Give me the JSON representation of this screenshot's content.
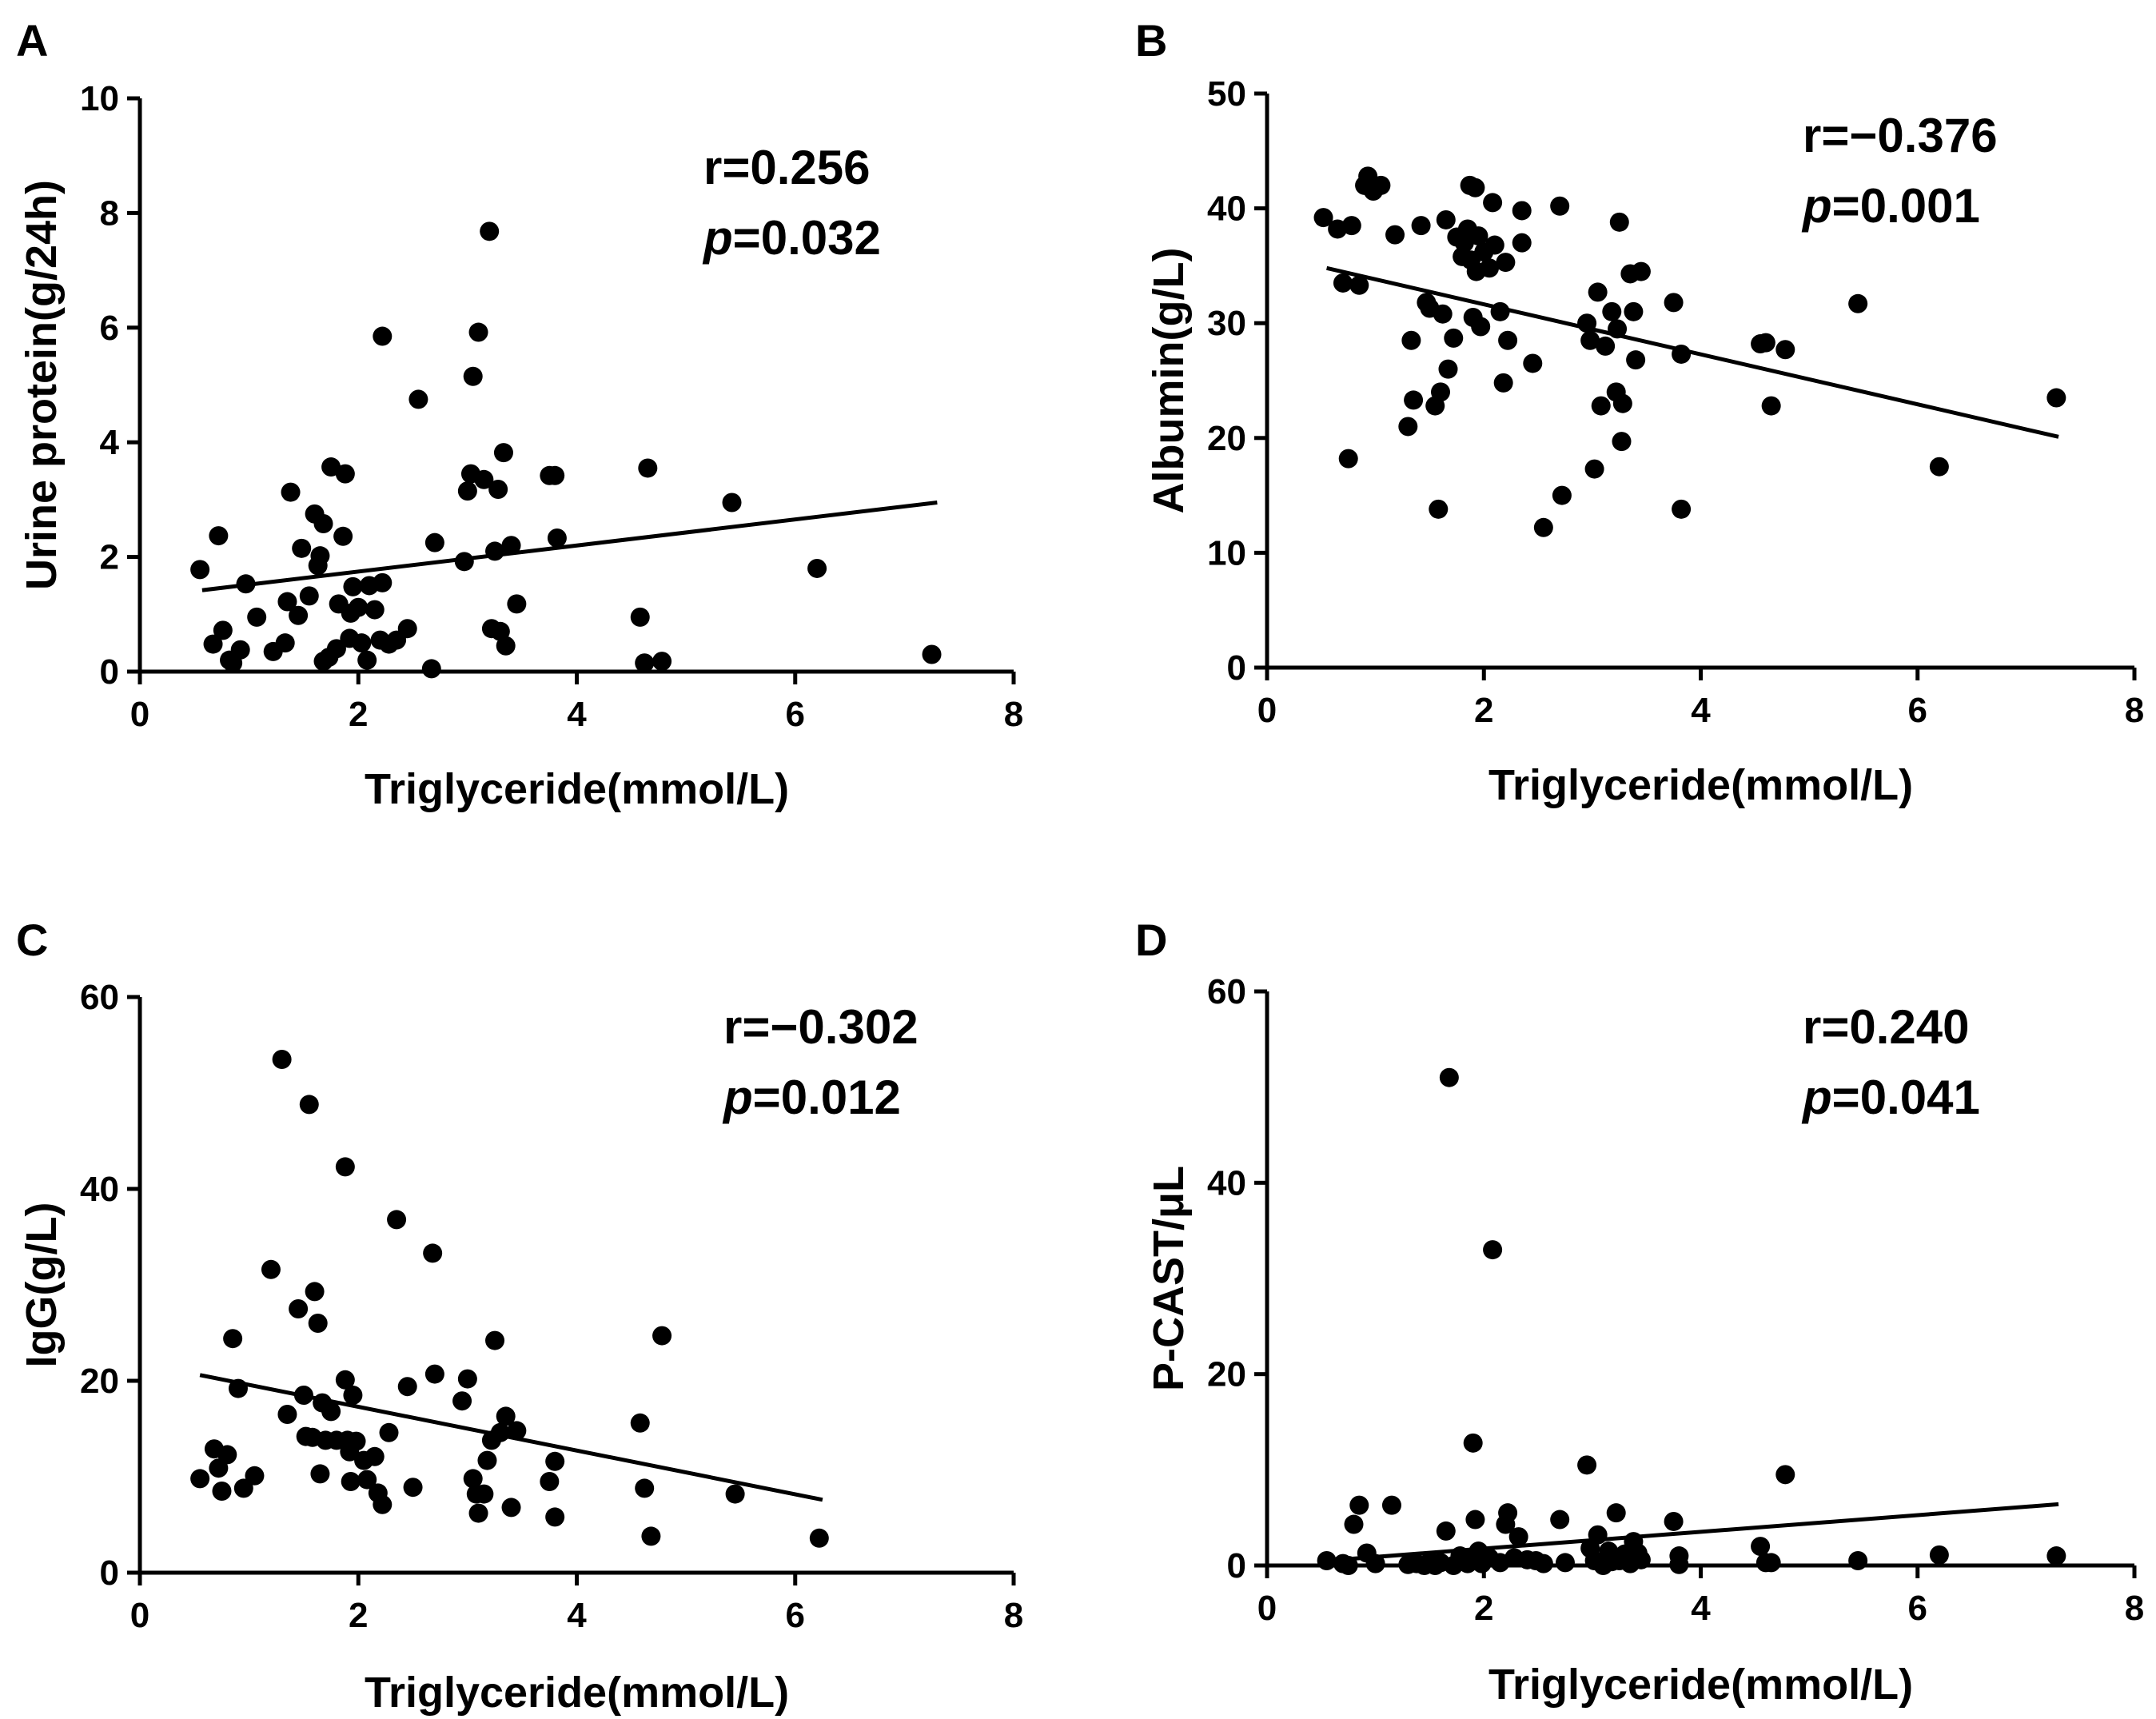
{
  "chart_data": [
    {
      "type": "scatter",
      "panel": "A",
      "xlabel": "Triglyceride(mmol/L)",
      "ylabel": "Urine protein(g/24h)",
      "xlim": [
        0,
        8
      ],
      "ylim": [
        0,
        10
      ],
      "xticks": [
        "0",
        "2",
        "4",
        "6",
        "8"
      ],
      "yticks": [
        "0",
        "2",
        "4",
        "6",
        "8",
        "10"
      ],
      "stat_r": "r=0.256",
      "stat_p_symbol": "p",
      "stat_p_value": "=0.032",
      "fit": [
        [
          0.57,
          1.42
        ],
        [
          7.3,
          2.95
        ]
      ],
      "points": [
        [
          0.55,
          1.78
        ],
        [
          0.67,
          0.48
        ],
        [
          0.72,
          2.37
        ],
        [
          0.76,
          0.72
        ],
        [
          0.82,
          0.2
        ],
        [
          0.85,
          0.15
        ],
        [
          0.92,
          0.38
        ],
        [
          0.97,
          1.53
        ],
        [
          1.07,
          0.95
        ],
        [
          1.22,
          0.35
        ],
        [
          1.33,
          0.5
        ],
        [
          1.35,
          1.22
        ],
        [
          1.38,
          3.13
        ],
        [
          1.45,
          0.98
        ],
        [
          1.48,
          2.15
        ],
        [
          1.55,
          1.32
        ],
        [
          1.6,
          2.75
        ],
        [
          1.63,
          1.85
        ],
        [
          1.65,
          2.02
        ],
        [
          1.68,
          2.58
        ],
        [
          1.68,
          0.18
        ],
        [
          1.73,
          0.25
        ],
        [
          1.75,
          3.57
        ],
        [
          1.8,
          0.4
        ],
        [
          1.82,
          1.18
        ],
        [
          1.86,
          2.36
        ],
        [
          1.88,
          3.45
        ],
        [
          1.92,
          0.58
        ],
        [
          1.93,
          1.02
        ],
        [
          1.95,
          1.48
        ],
        [
          2.0,
          1.12
        ],
        [
          2.03,
          0.5
        ],
        [
          2.08,
          0.2
        ],
        [
          2.1,
          1.5
        ],
        [
          2.15,
          1.08
        ],
        [
          2.2,
          0.55
        ],
        [
          2.22,
          5.85
        ],
        [
          2.22,
          1.55
        ],
        [
          2.28,
          0.48
        ],
        [
          2.35,
          0.55
        ],
        [
          2.45,
          0.75
        ],
        [
          2.55,
          4.75
        ],
        [
          2.67,
          0.05
        ],
        [
          2.7,
          2.25
        ],
        [
          2.97,
          1.92
        ],
        [
          3.0,
          3.15
        ],
        [
          3.03,
          3.45
        ],
        [
          3.05,
          5.15
        ],
        [
          3.1,
          5.92
        ],
        [
          3.15,
          3.35
        ],
        [
          3.2,
          7.68
        ],
        [
          3.22,
          0.75
        ],
        [
          3.25,
          2.1
        ],
        [
          3.28,
          3.18
        ],
        [
          3.3,
          0.7
        ],
        [
          3.33,
          3.82
        ],
        [
          3.35,
          0.45
        ],
        [
          3.4,
          2.2
        ],
        [
          3.45,
          1.18
        ],
        [
          3.75,
          3.42
        ],
        [
          3.8,
          3.42
        ],
        [
          3.82,
          2.33
        ],
        [
          4.58,
          0.95
        ],
        [
          4.62,
          0.15
        ],
        [
          4.65,
          3.55
        ],
        [
          4.78,
          0.18
        ],
        [
          5.42,
          2.95
        ],
        [
          6.2,
          1.8
        ],
        [
          7.25,
          0.3
        ]
      ]
    },
    {
      "type": "scatter",
      "panel": "B",
      "xlabel": "Triglyceride(mmol/L)",
      "ylabel": "Albumin(g/L)",
      "xlim": [
        0,
        8
      ],
      "ylim": [
        0,
        50
      ],
      "xticks": [
        "0",
        "2",
        "4",
        "6",
        "8"
      ],
      "yticks": [
        "0",
        "10",
        "20",
        "30",
        "40",
        "50"
      ],
      "stat_r": "r=−0.376",
      "stat_p_symbol": "p",
      "stat_p_value": "=0.001",
      "fit": [
        [
          0.55,
          34.8
        ],
        [
          7.3,
          20.1
        ]
      ],
      "points": [
        [
          0.52,
          39.2
        ],
        [
          0.65,
          38.2
        ],
        [
          0.7,
          33.5
        ],
        [
          0.75,
          18.2
        ],
        [
          0.78,
          38.5
        ],
        [
          0.85,
          33.3
        ],
        [
          0.9,
          42.0
        ],
        [
          0.93,
          42.8
        ],
        [
          0.98,
          41.5
        ],
        [
          1.05,
          42.0
        ],
        [
          1.18,
          37.7
        ],
        [
          1.3,
          21.0
        ],
        [
          1.33,
          28.5
        ],
        [
          1.35,
          23.3
        ],
        [
          1.42,
          38.5
        ],
        [
          1.47,
          31.8
        ],
        [
          1.5,
          31.3
        ],
        [
          1.55,
          22.8
        ],
        [
          1.58,
          13.8
        ],
        [
          1.6,
          24.0
        ],
        [
          1.62,
          30.8
        ],
        [
          1.65,
          39.0
        ],
        [
          1.67,
          26.0
        ],
        [
          1.72,
          28.7
        ],
        [
          1.75,
          37.5
        ],
        [
          1.8,
          35.8
        ],
        [
          1.82,
          37.0
        ],
        [
          1.85,
          38.2
        ],
        [
          1.87,
          42.0
        ],
        [
          1.88,
          35.5
        ],
        [
          1.9,
          30.5
        ],
        [
          1.92,
          41.8
        ],
        [
          1.93,
          34.5
        ],
        [
          1.95,
          37.6
        ],
        [
          1.97,
          29.7
        ],
        [
          2.0,
          36.2
        ],
        [
          2.05,
          34.8
        ],
        [
          2.08,
          40.5
        ],
        [
          2.1,
          36.8
        ],
        [
          2.15,
          31.0
        ],
        [
          2.18,
          24.8
        ],
        [
          2.2,
          35.3
        ],
        [
          2.22,
          28.5
        ],
        [
          2.35,
          39.8
        ],
        [
          2.35,
          37.0
        ],
        [
          2.45,
          26.5
        ],
        [
          2.55,
          12.2
        ],
        [
          2.7,
          40.2
        ],
        [
          2.72,
          15.0
        ],
        [
          2.95,
          30.0
        ],
        [
          2.98,
          28.5
        ],
        [
          3.02,
          17.3
        ],
        [
          3.05,
          32.7
        ],
        [
          3.08,
          22.8
        ],
        [
          3.12,
          28.0
        ],
        [
          3.18,
          31.0
        ],
        [
          3.22,
          24.0
        ],
        [
          3.23,
          29.5
        ],
        [
          3.25,
          38.8
        ],
        [
          3.27,
          19.7
        ],
        [
          3.28,
          23.0
        ],
        [
          3.35,
          34.3
        ],
        [
          3.38,
          31.0
        ],
        [
          3.4,
          26.8
        ],
        [
          3.45,
          34.5
        ],
        [
          3.75,
          31.8
        ],
        [
          3.82,
          27.3
        ],
        [
          3.82,
          13.8
        ],
        [
          4.55,
          28.2
        ],
        [
          4.6,
          28.3
        ],
        [
          4.65,
          22.8
        ],
        [
          4.78,
          27.7
        ],
        [
          5.45,
          31.7
        ],
        [
          6.2,
          17.5
        ],
        [
          7.28,
          23.5
        ]
      ]
    },
    {
      "type": "scatter",
      "panel": "C",
      "xlabel": "Triglyceride(mmol/L)",
      "ylabel": "IgG(g/L)",
      "xlim": [
        0,
        8
      ],
      "ylim": [
        0,
        60
      ],
      "xticks": [
        "0",
        "2",
        "4",
        "6",
        "8"
      ],
      "yticks": [
        "0",
        "20",
        "40",
        "60"
      ],
      "stat_r": "r=−0.302",
      "stat_p_symbol": "p",
      "stat_p_value": "=0.012",
      "fit": [
        [
          0.55,
          20.6
        ],
        [
          6.25,
          7.6
        ]
      ],
      "points": [
        [
          0.55,
          9.8
        ],
        [
          0.68,
          12.9
        ],
        [
          0.72,
          10.9
        ],
        [
          0.75,
          8.5
        ],
        [
          0.8,
          12.3
        ],
        [
          0.85,
          24.4
        ],
        [
          0.9,
          19.2
        ],
        [
          0.95,
          8.8
        ],
        [
          1.05,
          10.1
        ],
        [
          1.2,
          31.6
        ],
        [
          1.3,
          53.5
        ],
        [
          1.35,
          16.5
        ],
        [
          1.45,
          27.5
        ],
        [
          1.5,
          18.5
        ],
        [
          1.52,
          14.2
        ],
        [
          1.55,
          48.8
        ],
        [
          1.58,
          14.1
        ],
        [
          1.6,
          29.3
        ],
        [
          1.63,
          26.0
        ],
        [
          1.65,
          10.3
        ],
        [
          1.67,
          17.7
        ],
        [
          1.7,
          13.8
        ],
        [
          1.75,
          16.8
        ],
        [
          1.8,
          13.8
        ],
        [
          1.88,
          42.3
        ],
        [
          1.88,
          20.1
        ],
        [
          1.9,
          13.8
        ],
        [
          1.92,
          12.6
        ],
        [
          1.93,
          9.5
        ],
        [
          1.95,
          18.5
        ],
        [
          1.98,
          13.7
        ],
        [
          2.05,
          11.7
        ],
        [
          2.08,
          9.7
        ],
        [
          2.15,
          12.1
        ],
        [
          2.18,
          8.3
        ],
        [
          2.22,
          7.1
        ],
        [
          2.28,
          14.6
        ],
        [
          2.35,
          36.8
        ],
        [
          2.45,
          19.4
        ],
        [
          2.5,
          8.9
        ],
        [
          2.68,
          33.3
        ],
        [
          2.7,
          20.7
        ],
        [
          2.95,
          17.9
        ],
        [
          3.0,
          20.2
        ],
        [
          3.05,
          9.8
        ],
        [
          3.08,
          8.2
        ],
        [
          3.1,
          6.2
        ],
        [
          3.15,
          8.2
        ],
        [
          3.18,
          11.7
        ],
        [
          3.22,
          13.8
        ],
        [
          3.25,
          24.2
        ],
        [
          3.3,
          14.6
        ],
        [
          3.35,
          16.3
        ],
        [
          3.4,
          6.8
        ],
        [
          3.45,
          14.8
        ],
        [
          3.75,
          9.5
        ],
        [
          3.8,
          11.6
        ],
        [
          3.8,
          5.8
        ],
        [
          4.58,
          15.6
        ],
        [
          4.62,
          8.8
        ],
        [
          4.68,
          3.8
        ],
        [
          4.78,
          24.7
        ],
        [
          5.45,
          8.2
        ],
        [
          6.22,
          3.6
        ]
      ]
    },
    {
      "type": "scatter",
      "panel": "D",
      "xlabel": "Triglyceride(mmol/L)",
      "ylabel": "P-CAST/μL",
      "xlim": [
        0,
        8
      ],
      "ylim": [
        0,
        60
      ],
      "xticks": [
        "0",
        "2",
        "4",
        "6",
        "8"
      ],
      "yticks": [
        "0",
        "20",
        "40",
        "60"
      ],
      "stat_r": "r=0.240",
      "stat_p_symbol": "p",
      "stat_p_value": "=0.041",
      "fit": [
        [
          0.55,
          0.5
        ],
        [
          7.3,
          6.4
        ]
      ],
      "points": [
        [
          0.55,
          0.5
        ],
        [
          0.7,
          0.2
        ],
        [
          0.75,
          0.0
        ],
        [
          0.8,
          4.3
        ],
        [
          0.85,
          6.3
        ],
        [
          0.92,
          1.3
        ],
        [
          1.0,
          0.2
        ],
        [
          1.15,
          6.3
        ],
        [
          1.3,
          0.1
        ],
        [
          1.38,
          0.2
        ],
        [
          1.45,
          0.0
        ],
        [
          1.5,
          0.4
        ],
        [
          1.55,
          0.0
        ],
        [
          1.6,
          0.3
        ],
        [
          1.65,
          3.6
        ],
        [
          1.68,
          51.0
        ],
        [
          1.72,
          0.0
        ],
        [
          1.78,
          1.0
        ],
        [
          1.82,
          0.6
        ],
        [
          1.85,
          0.2
        ],
        [
          1.9,
          12.8
        ],
        [
          1.92,
          4.8
        ],
        [
          1.95,
          1.5
        ],
        [
          1.98,
          0.2
        ],
        [
          2.05,
          0.8
        ],
        [
          2.08,
          33.0
        ],
        [
          2.15,
          0.3
        ],
        [
          2.2,
          4.3
        ],
        [
          2.22,
          5.5
        ],
        [
          2.28,
          0.8
        ],
        [
          2.32,
          3.0
        ],
        [
          2.4,
          0.6
        ],
        [
          2.48,
          0.5
        ],
        [
          2.55,
          0.2
        ],
        [
          2.7,
          4.8
        ],
        [
          2.75,
          0.3
        ],
        [
          2.95,
          10.5
        ],
        [
          2.98,
          1.8
        ],
        [
          3.02,
          0.5
        ],
        [
          3.05,
          3.2
        ],
        [
          3.1,
          0.0
        ],
        [
          3.15,
          1.5
        ],
        [
          3.18,
          0.4
        ],
        [
          3.22,
          5.5
        ],
        [
          3.25,
          0.5
        ],
        [
          3.3,
          1.2
        ],
        [
          3.35,
          0.2
        ],
        [
          3.38,
          2.5
        ],
        [
          3.42,
          1.3
        ],
        [
          3.45,
          0.6
        ],
        [
          3.75,
          4.6
        ],
        [
          3.8,
          1.0
        ],
        [
          3.8,
          0.1
        ],
        [
          4.55,
          2.0
        ],
        [
          4.6,
          0.3
        ],
        [
          4.65,
          0.3
        ],
        [
          4.78,
          9.5
        ],
        [
          5.45,
          0.5
        ],
        [
          6.2,
          1.1
        ],
        [
          7.28,
          1.0
        ]
      ]
    }
  ]
}
